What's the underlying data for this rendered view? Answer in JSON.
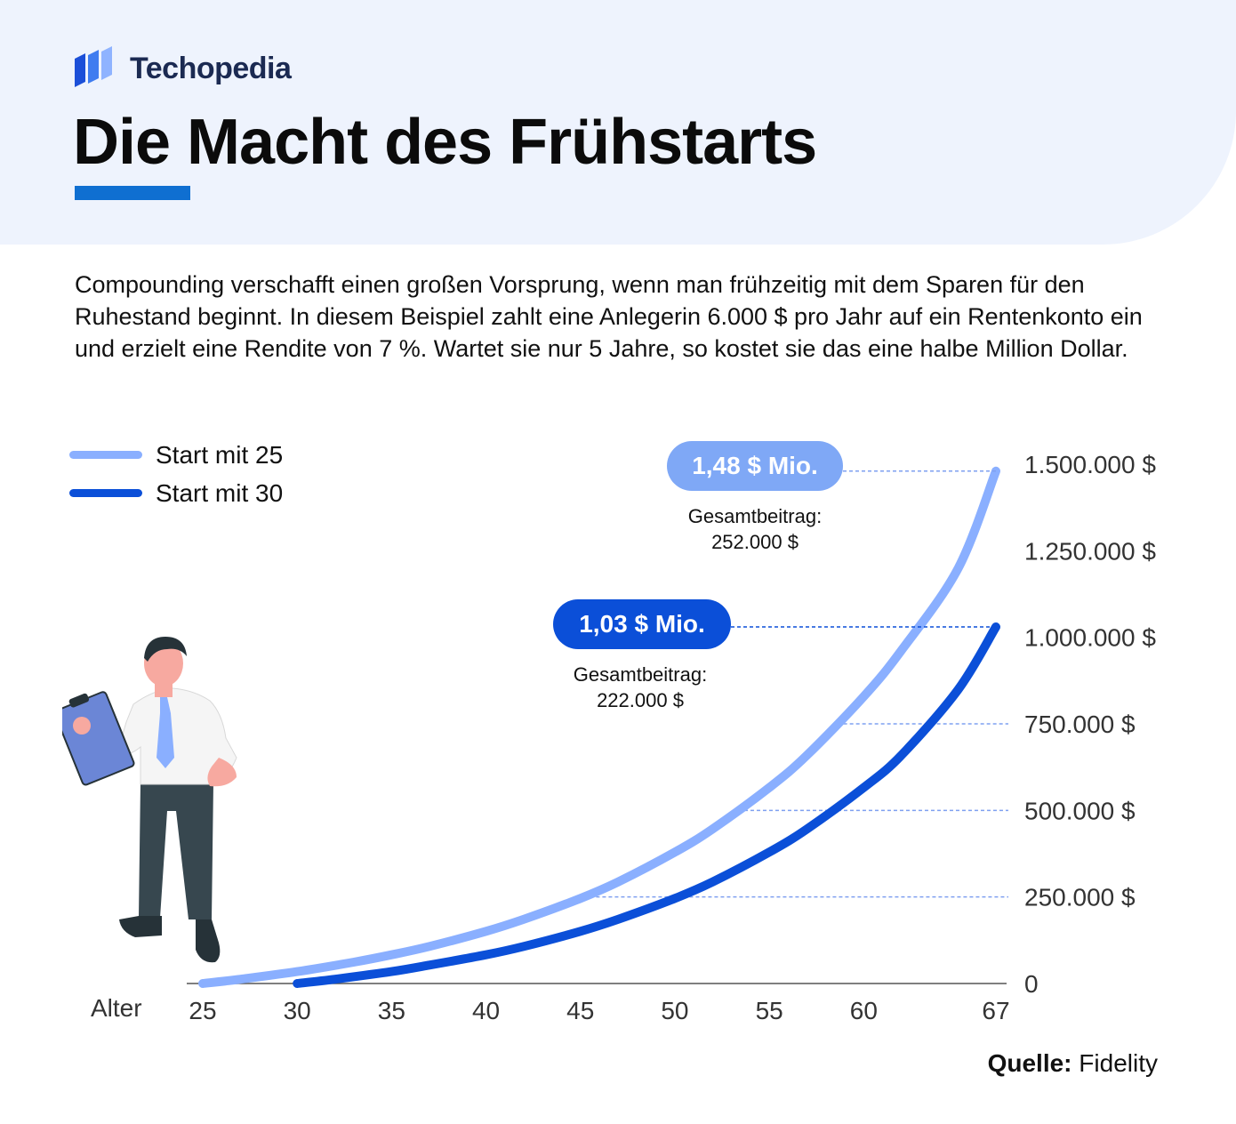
{
  "brand": {
    "name": "Techopedia",
    "logo_icon": "techopedia-logo-icon"
  },
  "title": "Die Macht des Frühstarts",
  "intro": "Compounding verschafft einen großen Vorsprung, wenn man frühzeitig mit dem Sparen für den Ruhestand beginnt. In diesem Beispiel zahlt eine Anlegerin 6.000 $ pro Jahr auf ein Rentenkonto ein und erzielt eine Rendite von 7 %. Wartet sie nur 5 Jahre, so kostet sie das eine halbe Million Dollar.",
  "source": {
    "label": "Quelle:",
    "value": "Fidelity"
  },
  "illustration": {
    "icon": "businessman-with-clipboard-icon"
  },
  "colors": {
    "start25": "#8aafff",
    "start30": "#0b4fd8",
    "accent": "#0f6fd1",
    "header_bg": "#eef3fd"
  },
  "chart_data": {
    "type": "line",
    "xlabel": "Alter",
    "ylabel": "",
    "x_ticks": [
      25,
      30,
      35,
      40,
      45,
      50,
      55,
      60,
      67
    ],
    "y_ticks": [
      0,
      250000,
      500000,
      750000,
      1000000,
      1250000,
      1500000
    ],
    "y_tick_labels": [
      "0",
      "250.000 $",
      "500.000 $",
      "750.000 $",
      "1.000.000 $",
      "1.250.000 $",
      "1.500.000 $"
    ],
    "xlim": [
      25,
      67
    ],
    "ylim": [
      0,
      1500000
    ],
    "legend_position": "top-left",
    "series": [
      {
        "name": "Start mit 25",
        "x": [
          25,
          27,
          30,
          33,
          35,
          37,
          40,
          42,
          45,
          47,
          50,
          52,
          55,
          57,
          60,
          62,
          65,
          67
        ],
        "values": [
          0,
          12400,
          34500,
          61700,
          82900,
          107200,
          150800,
          185500,
          245900,
          293400,
          379400,
          446500,
          565900,
          659600,
          828800,
          962400,
          1199000,
          1480000
        ]
      },
      {
        "name": "Start mit 30",
        "x": [
          30,
          32,
          35,
          37,
          40,
          42,
          45,
          47,
          50,
          52,
          55,
          57,
          60,
          62,
          65,
          67
        ],
        "values": [
          0,
          12400,
          34500,
          53100,
          82900,
          107200,
          150800,
          185500,
          245900,
          293400,
          379400,
          446500,
          565900,
          659600,
          849000,
          1030000
        ]
      }
    ],
    "annotations": [
      {
        "series": "Start mit 25",
        "value_label": "1,48 $ Mio.",
        "contribution_label": "Gesamtbeitrag:",
        "contribution_value": "252.000 $"
      },
      {
        "series": "Start mit 30",
        "value_label": "1,03 $ Mio.",
        "contribution_label": "Gesamtbeitrag:",
        "contribution_value": "222.000 $"
      }
    ]
  }
}
